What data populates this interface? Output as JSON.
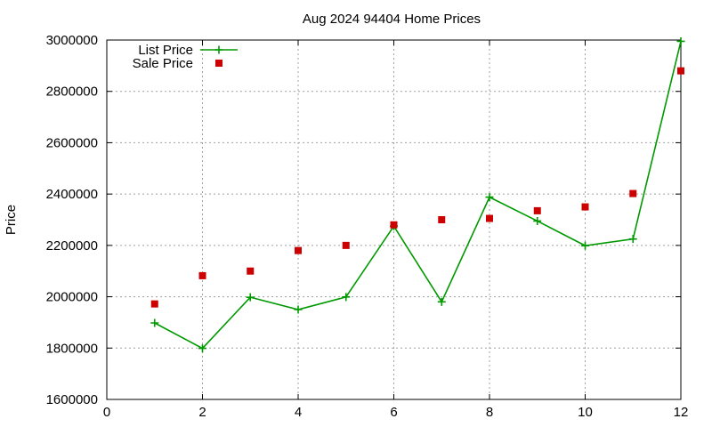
{
  "chart_data": {
    "type": "line",
    "title": "Aug 2024 94404 Home Prices",
    "xlabel": "",
    "ylabel": "Price",
    "xlim": [
      0,
      12
    ],
    "ylim": [
      1600000,
      3000000
    ],
    "xticks": [
      0,
      2,
      4,
      6,
      8,
      10,
      12
    ],
    "yticks": [
      1600000,
      1800000,
      2000000,
      2200000,
      2400000,
      2600000,
      2800000,
      3000000
    ],
    "x_tick_labels": [
      "0",
      "2",
      "4",
      "6",
      "8",
      "10",
      "12"
    ],
    "y_tick_labels": [
      "1600000",
      "1800000",
      "2000000",
      "2200000",
      "2400000",
      "2600000",
      "2800000",
      "3000000"
    ],
    "grid": true,
    "legend_position": "top-left",
    "series": [
      {
        "name": "List Price",
        "style": "line-with-plus-markers",
        "color": "#009900",
        "x": [
          1,
          2,
          3,
          4,
          5,
          6,
          7,
          8,
          9,
          10,
          11,
          12
        ],
        "y": [
          1898000,
          1799000,
          1998000,
          1950000,
          1999000,
          2275000,
          1980000,
          2388000,
          2295000,
          2199000,
          2225000,
          2995000
        ]
      },
      {
        "name": "Sale Price",
        "style": "square-markers",
        "color": "#cc0000",
        "x": [
          1,
          2,
          3,
          4,
          5,
          6,
          7,
          8,
          9,
          10,
          11,
          12
        ],
        "y": [
          1972000,
          2082000,
          2100000,
          2180000,
          2200000,
          2280000,
          2300000,
          2305000,
          2335000,
          2350000,
          2402000,
          2880000
        ]
      }
    ]
  }
}
